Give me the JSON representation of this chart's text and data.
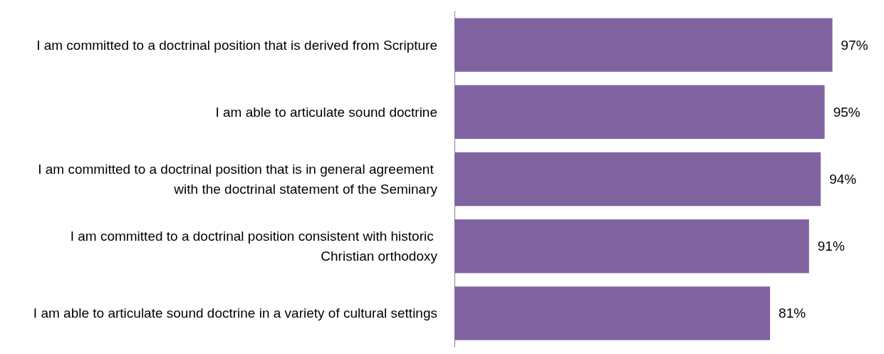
{
  "chart_data": {
    "type": "bar",
    "orientation": "horizontal",
    "categories": [
      "I am committed to a doctrinal position that is derived from Scripture",
      "I am able to articulate sound doctrine",
      "I am committed to a doctrinal position that is in general agreement with the doctrinal statement of the Seminary",
      "I am committed to a doctrinal position consistent with historic Christian orthodoxy",
      "I am able to articulate sound doctrine in a variety of cultural settings"
    ],
    "values": [
      97,
      95,
      94,
      91,
      81
    ],
    "value_labels": [
      "97%",
      "95%",
      "94%",
      "91%",
      "81%"
    ],
    "color": "#8064a2",
    "tick_labels": "y"
  }
}
